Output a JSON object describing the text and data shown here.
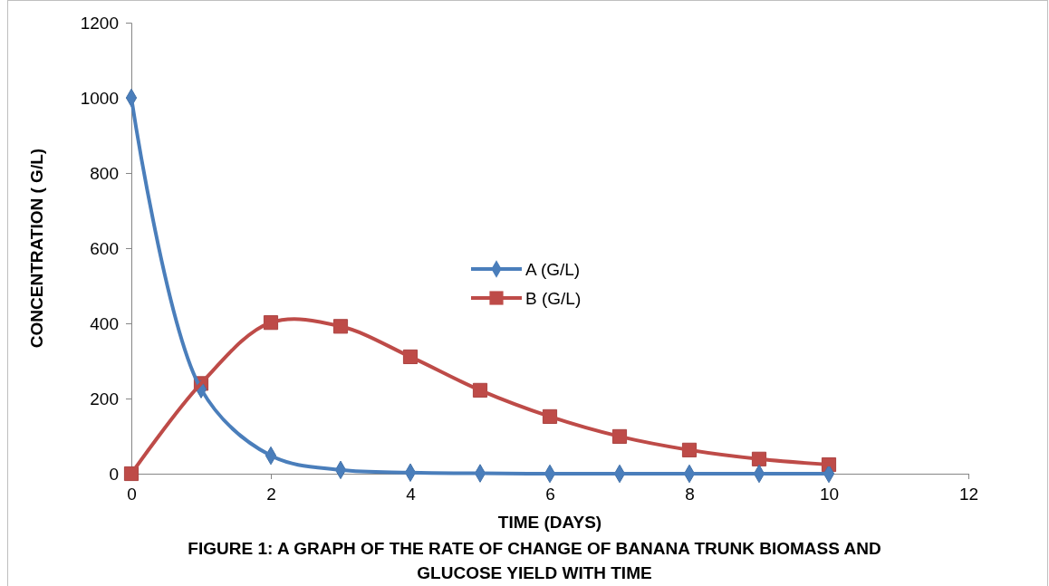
{
  "chart_data": {
    "type": "line",
    "title": "FIGURE 1: A GRAPH OF THE RATE OF CHANGE OF BANANA TRUNK BIOMASS AND GLUCOSE YIELD WITH TIME",
    "xlabel": "TIME (DAYS)",
    "ylabel": "CONCENTRATION ( G/L)",
    "x": [
      0,
      1,
      2,
      3,
      4,
      5,
      6,
      7,
      8,
      9,
      10
    ],
    "series": [
      {
        "name": "A (G/L)",
        "color": "#4a7ebb",
        "marker": "diamond",
        "values": [
          1000,
          225,
          48,
          10,
          3,
          1,
          0,
          0,
          0,
          0,
          0
        ]
      },
      {
        "name": "B (G/L)",
        "color": "#be4b48",
        "marker": "square",
        "values": [
          0,
          240,
          402,
          392,
          311,
          222,
          152,
          99,
          63,
          39,
          24
        ]
      }
    ],
    "xlim": [
      0,
      12
    ],
    "xticks": [
      0,
      2,
      4,
      6,
      8,
      10,
      12
    ],
    "ylim": [
      0,
      1200
    ],
    "yticks": [
      0,
      200,
      400,
      600,
      800,
      1000,
      1200
    ],
    "grid": false,
    "legend": "center"
  }
}
